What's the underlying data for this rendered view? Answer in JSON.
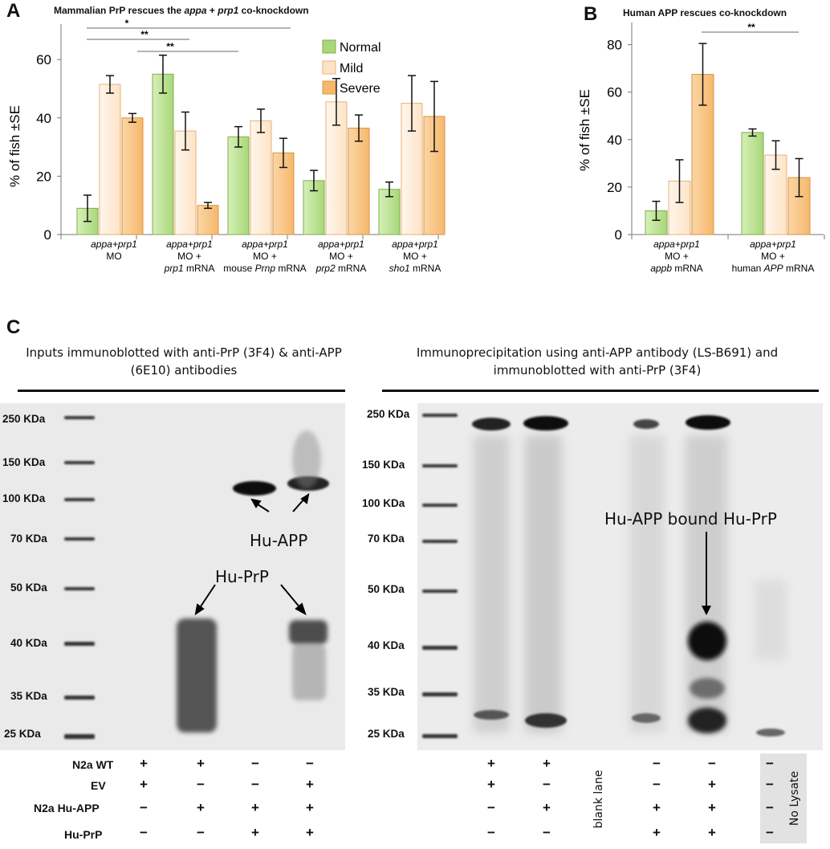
{
  "panel_a": {
    "letter": "A",
    "title_parts": [
      "Mammalian PrP rescues the ",
      "appa",
      " + ",
      "prp1",
      " co-knockdown"
    ],
    "ylabel": "% of fish ±SE",
    "yticks": [
      "0",
      "20",
      "40",
      "60"
    ],
    "significance": [
      "*",
      "**",
      "**"
    ],
    "legend": [
      "Normal",
      "Mild",
      "Severe"
    ],
    "groups": [
      {
        "line1": [
          "appa+prp1",
          ""
        ],
        "line2": [
          "MO",
          ""
        ],
        "line3": [
          "",
          ""
        ]
      },
      {
        "line1": [
          "appa+prp1",
          ""
        ],
        "line2": [
          "MO +",
          ""
        ],
        "line3": [
          "prp1",
          " mRNA"
        ]
      },
      {
        "line1": [
          "appa+prp1",
          ""
        ],
        "line2": [
          "MO +",
          ""
        ],
        "line3": [
          "mouse ",
          "Prnp",
          " mRNA"
        ]
      },
      {
        "line1": [
          "appa+prp1",
          ""
        ],
        "line2": [
          "MO +",
          ""
        ],
        "line3": [
          "prp2",
          " mRNA"
        ]
      },
      {
        "line1": [
          "appa+prp1",
          ""
        ],
        "line2": [
          "MO +",
          ""
        ],
        "line3": [
          "sho1",
          " mRNA"
        ]
      }
    ]
  },
  "panel_b": {
    "letter": "B",
    "title": "Human APP rescues co-knockdown",
    "ylabel": "% of fish ±SE",
    "yticks": [
      "0",
      "20",
      "40",
      "60",
      "80"
    ],
    "significance": [
      "**"
    ],
    "groups": [
      {
        "line1": "appa+prp1",
        "line2": "MO +",
        "line3_i": "appb",
        "line3_r": " mRNA"
      },
      {
        "line1": "appa+prp1",
        "line2": "MO +",
        "line3_r1": "human ",
        "line3_i": "APP",
        "line3_r": " mRNA"
      }
    ]
  },
  "chart_data": [
    {
      "type": "bar",
      "title": "Mammalian PrP rescues the appa + prp1 co-knockdown",
      "ylabel": "% of fish ±SE",
      "ylim": [
        0,
        65
      ],
      "categories": [
        "appa+prp1 MO",
        "appa+prp1 MO + prp1 mRNA",
        "appa+prp1 MO + mouse Prnp mRNA",
        "appa+prp1 MO + prp2 mRNA",
        "appa+prp1 MO + sho1 mRNA"
      ],
      "series": [
        {
          "name": "Normal",
          "values": [
            9,
            55,
            33.5,
            18.5,
            15.5
          ],
          "errors": [
            4.5,
            6.5,
            3.5,
            3.5,
            2.5
          ],
          "color": "#a9d779"
        },
        {
          "name": "Mild",
          "values": [
            51.5,
            35.5,
            39,
            45.5,
            45
          ],
          "errors": [
            3,
            6.5,
            4,
            8,
            9.5
          ],
          "color": "#fde3c6"
        },
        {
          "name": "Severe",
          "values": [
            40,
            10,
            28,
            36.5,
            40.5
          ],
          "errors": [
            1.5,
            1,
            5,
            4.5,
            12
          ],
          "color": "#f6b86c"
        }
      ],
      "significance_brackets": [
        {
          "from_group": 0,
          "to_group": 2,
          "label": "*"
        },
        {
          "from_group": 0,
          "to_group": 1,
          "label": "**"
        },
        {
          "from_group": 1,
          "to_group": 1,
          "label": "**"
        }
      ]
    },
    {
      "type": "bar",
      "title": "Human APP rescues co-knockdown",
      "ylabel": "% of fish ±SE",
      "ylim": [
        0,
        88
      ],
      "categories": [
        "appa+prp1 MO + appb mRNA",
        "appa+prp1 MO + human APP mRNA"
      ],
      "series": [
        {
          "name": "Normal",
          "values": [
            10,
            43
          ],
          "errors": [
            4,
            1.5
          ],
          "color": "#a9d779"
        },
        {
          "name": "Mild",
          "values": [
            22.5,
            33.5
          ],
          "errors": [
            9,
            6
          ],
          "color": "#fde3c6"
        },
        {
          "name": "Severe",
          "values": [
            67.5,
            24
          ],
          "errors": [
            13,
            8
          ],
          "color": "#f6b86c"
        }
      ],
      "significance_brackets": [
        {
          "from_group": 0,
          "to_group": 1,
          "label": "**"
        }
      ]
    }
  ],
  "panel_c": {
    "letter": "C",
    "left_header": "Inputs immunoblotted with anti-PrP (3F4) & anti-APP (6E10) antibodies",
    "right_header": "Immunoprecipitation using anti-APP antibody (LS-B691) and immunoblotted with anti-PrP (3F4)",
    "markers": [
      "250 KDa",
      "150 KDa",
      "100 KDa",
      "70 KDa",
      "50 KDa",
      "40 KDa",
      "35 KDa",
      "25 KDa"
    ],
    "left_annotations": {
      "app": "Hu-APP",
      "prp": "Hu-PrP"
    },
    "right_annotation": "Hu-APP bound Hu-PrP",
    "row_labels": [
      "N2a WT",
      "EV",
      "N2a Hu-APP",
      "Hu-PrP"
    ],
    "left_lanes": [
      [
        "+",
        "+",
        "−",
        "−"
      ],
      [
        "+",
        "−",
        "−",
        "+"
      ],
      [
        "−",
        "+",
        "+",
        "+"
      ],
      [
        "−",
        "−",
        "+",
        "+"
      ]
    ],
    "right_lanes": [
      [
        "+",
        "+",
        "−",
        "−"
      ],
      [
        "+",
        "−",
        "−",
        "+"
      ],
      [
        "−",
        "+",
        "+",
        "+"
      ],
      [
        "−",
        "−",
        "+",
        "+"
      ]
    ],
    "blank_lane_label": "blank lane",
    "no_lysate_signs": [
      "−",
      "−",
      "−",
      "−"
    ],
    "no_lysate_label": "No Lysate"
  }
}
